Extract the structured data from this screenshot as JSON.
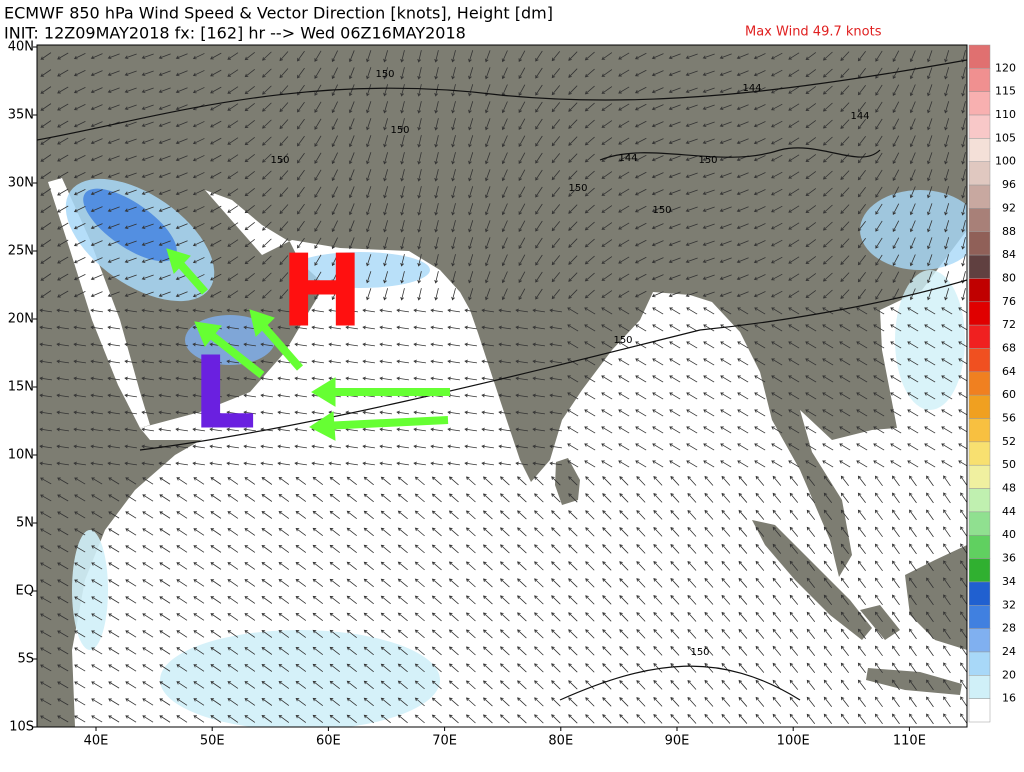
{
  "header": {
    "title": "ECMWF 850 hPa Wind Speed & Vector Direction [knots], Height [dm]",
    "init": "INIT: 12Z09MAY2018 fx: [162] hr --> Wed 06Z16MAY2018",
    "max_wind": "Max Wind 49.7 knots"
  },
  "axes": {
    "lat_labels": [
      "40N",
      "35N",
      "30N",
      "25N",
      "20N",
      "15N",
      "10N",
      "5N",
      "EQ",
      "5S",
      "10S"
    ],
    "lon_labels": [
      "40E",
      "50E",
      "60E",
      "70E",
      "80E",
      "90E",
      "100E",
      "110E"
    ]
  },
  "colorbar": {
    "labels": [
      "120",
      "115",
      "110",
      "105",
      "100",
      "96",
      "92",
      "88",
      "84",
      "80",
      "76",
      "72",
      "68",
      "64",
      "60",
      "56",
      "52",
      "50",
      "48",
      "44",
      "40",
      "36",
      "34",
      "32",
      "28",
      "24",
      "20",
      "16"
    ],
    "colors": [
      "#e07070",
      "#f09090",
      "#f8b0b0",
      "#f8c8c8",
      "#f4e0d8",
      "#e0c8c0",
      "#c8a8a0",
      "#a88078",
      "#906058",
      "#604040",
      "#c00000",
      "#e00000",
      "#f02020",
      "#f05020",
      "#f08020",
      "#f0a020",
      "#f8c040",
      "#f8e070",
      "#f0f0a0",
      "#c0f0b0",
      "#90e090",
      "#60d060",
      "#30b030",
      "#2060d0",
      "#4080e0",
      "#80b0f0",
      "#a8d8f8",
      "#d0f0f8",
      "#ffffff"
    ]
  },
  "annotations": {
    "high": "H",
    "low": "L"
  },
  "contour_labels": [
    "150",
    "150",
    "150",
    "150",
    "150",
    "150",
    "144",
    "144",
    "144",
    "150",
    "150"
  ]
}
